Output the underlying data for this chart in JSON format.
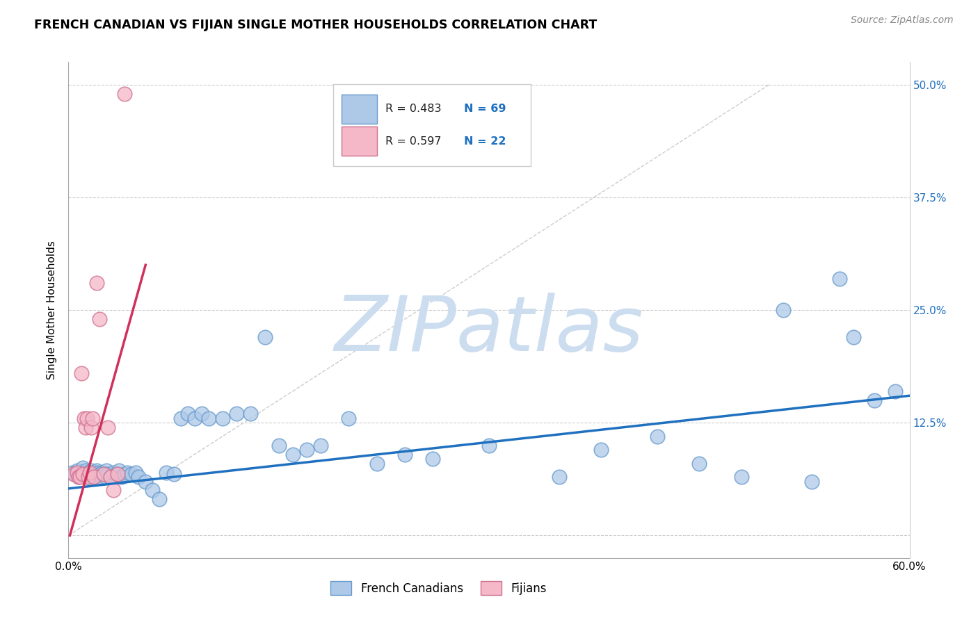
{
  "title": "FRENCH CANADIAN VS FIJIAN SINGLE MOTHER HOUSEHOLDS CORRELATION CHART",
  "source": "Source: ZipAtlas.com",
  "ylabel": "Single Mother Households",
  "xlim": [
    0.0,
    0.6
  ],
  "ylim": [
    -0.025,
    0.525
  ],
  "xticks": [
    0.0,
    0.1,
    0.2,
    0.3,
    0.4,
    0.5,
    0.6
  ],
  "xticklabels": [
    "0.0%",
    "",
    "",
    "",
    "",
    "",
    "60.0%"
  ],
  "ytick_positions": [
    0.0,
    0.125,
    0.25,
    0.375,
    0.5
  ],
  "ytick_labels": [
    "",
    "12.5%",
    "25.0%",
    "37.5%",
    "50.0%"
  ],
  "legend_r_blue": "R = 0.483",
  "legend_n_blue": "N = 69",
  "legend_r_pink": "R = 0.597",
  "legend_n_pink": "N = 22",
  "blue_color": "#aec9e8",
  "blue_edge": "#6699cc",
  "pink_color": "#f4b8c8",
  "pink_edge": "#d07090",
  "trend_blue": "#2070c0",
  "trend_pink": "#d0305a",
  "watermark": "ZIPatlas",
  "watermark_color": "#ccddf0",
  "blue_scatter_x": [
    0.003,
    0.005,
    0.006,
    0.007,
    0.008,
    0.009,
    0.01,
    0.011,
    0.012,
    0.013,
    0.014,
    0.015,
    0.016,
    0.017,
    0.018,
    0.019,
    0.02,
    0.021,
    0.022,
    0.023,
    0.024,
    0.025,
    0.026,
    0.027,
    0.028,
    0.03,
    0.032,
    0.034,
    0.036,
    0.038,
    0.04,
    0.042,
    0.045,
    0.048,
    0.05,
    0.055,
    0.06,
    0.065,
    0.07,
    0.075,
    0.08,
    0.085,
    0.09,
    0.095,
    0.1,
    0.11,
    0.12,
    0.13,
    0.14,
    0.15,
    0.16,
    0.17,
    0.18,
    0.2,
    0.22,
    0.24,
    0.26,
    0.3,
    0.35,
    0.38,
    0.42,
    0.45,
    0.48,
    0.51,
    0.53,
    0.55,
    0.56,
    0.575,
    0.59
  ],
  "blue_scatter_y": [
    0.07,
    0.068,
    0.072,
    0.065,
    0.068,
    0.07,
    0.075,
    0.068,
    0.072,
    0.065,
    0.07,
    0.068,
    0.072,
    0.065,
    0.07,
    0.068,
    0.072,
    0.07,
    0.068,
    0.065,
    0.07,
    0.068,
    0.065,
    0.072,
    0.068,
    0.065,
    0.07,
    0.068,
    0.072,
    0.065,
    0.068,
    0.07,
    0.068,
    0.07,
    0.065,
    0.06,
    0.05,
    0.04,
    0.07,
    0.068,
    0.13,
    0.135,
    0.13,
    0.135,
    0.13,
    0.13,
    0.135,
    0.135,
    0.22,
    0.1,
    0.09,
    0.095,
    0.1,
    0.13,
    0.08,
    0.09,
    0.085,
    0.1,
    0.065,
    0.095,
    0.11,
    0.08,
    0.065,
    0.25,
    0.06,
    0.285,
    0.22,
    0.15,
    0.16
  ],
  "pink_scatter_x": [
    0.004,
    0.006,
    0.007,
    0.008,
    0.009,
    0.01,
    0.011,
    0.012,
    0.013,
    0.014,
    0.015,
    0.016,
    0.017,
    0.018,
    0.02,
    0.022,
    0.025,
    0.028,
    0.03,
    0.032,
    0.035,
    0.04
  ],
  "pink_scatter_y": [
    0.068,
    0.07,
    0.065,
    0.065,
    0.18,
    0.068,
    0.13,
    0.12,
    0.13,
    0.065,
    0.07,
    0.12,
    0.13,
    0.065,
    0.28,
    0.24,
    0.068,
    0.12,
    0.065,
    0.05,
    0.068,
    0.49
  ],
  "blue_trend_x": [
    0.0,
    0.6
  ],
  "blue_trend_y": [
    0.052,
    0.155
  ],
  "pink_trend_x": [
    0.001,
    0.055
  ],
  "pink_trend_y": [
    0.0,
    0.3
  ],
  "ref_line_x": [
    0.0,
    0.5
  ],
  "ref_line_y": [
    0.0,
    0.5
  ]
}
